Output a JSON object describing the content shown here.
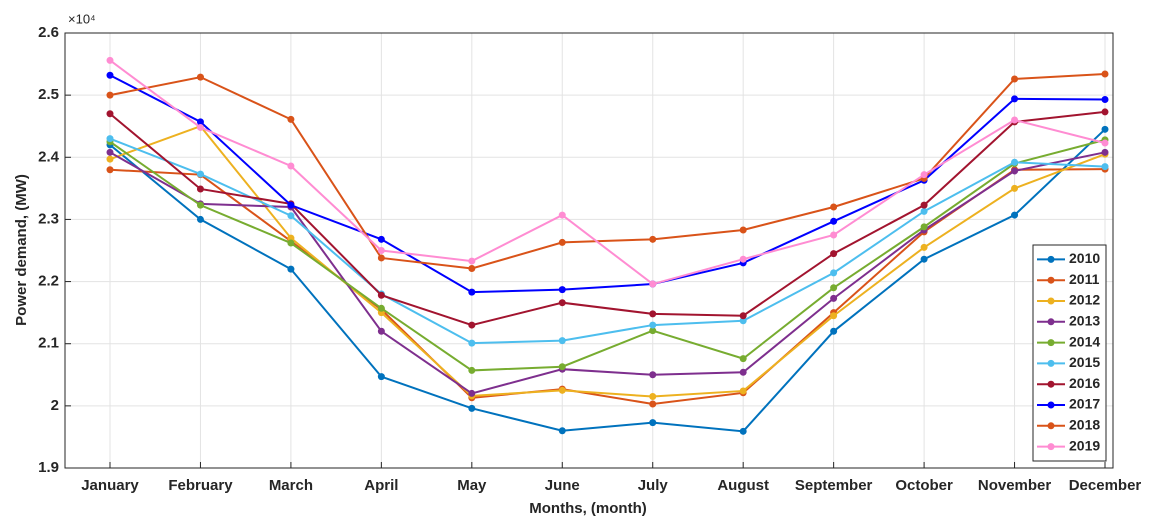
{
  "chart_data": {
    "type": "line",
    "y_multiplier": "×10⁴",
    "xlabel": "Months, (month)",
    "ylabel": "Power demand, (MW)",
    "categories": [
      "January",
      "February",
      "March",
      "April",
      "May",
      "June",
      "July",
      "August",
      "September",
      "October",
      "November",
      "December"
    ],
    "ylim": [
      1.9,
      2.6
    ],
    "yticks": [
      1.9,
      2,
      2.1,
      2.2,
      2.3,
      2.4,
      2.5,
      2.6
    ],
    "grid": true,
    "legend": "lower right",
    "series": [
      {
        "name": "2010",
        "color": "#0072BD",
        "values": [
          2.42,
          2.3,
          2.22,
          2.047,
          1.996,
          1.96,
          1.973,
          1.959,
          2.12,
          2.236,
          2.307,
          2.445
        ]
      },
      {
        "name": "2011",
        "color": "#D95319",
        "values": [
          2.38,
          2.372,
          2.265,
          2.155,
          2.013,
          2.027,
          2.003,
          2.021,
          2.15,
          2.28,
          2.38,
          2.381
        ]
      },
      {
        "name": "2012",
        "color": "#EDB120",
        "values": [
          2.397,
          2.45,
          2.27,
          2.15,
          2.016,
          2.025,
          2.015,
          2.024,
          2.145,
          2.255,
          2.35,
          2.405
        ]
      },
      {
        "name": "2013",
        "color": "#7E2F8E",
        "values": [
          2.408,
          2.325,
          2.32,
          2.12,
          2.02,
          2.059,
          2.05,
          2.054,
          2.173,
          2.283,
          2.378,
          2.408
        ]
      },
      {
        "name": "2014",
        "color": "#77AC30",
        "values": [
          2.425,
          2.323,
          2.262,
          2.157,
          2.057,
          2.063,
          2.121,
          2.076,
          2.19,
          2.288,
          2.39,
          2.428
        ]
      },
      {
        "name": "2015",
        "color": "#4DBEEE",
        "values": [
          2.43,
          2.373,
          2.306,
          2.18,
          2.101,
          2.105,
          2.13,
          2.137,
          2.214,
          2.313,
          2.392,
          2.385
        ]
      },
      {
        "name": "2016",
        "color": "#A2142F",
        "values": [
          2.47,
          2.349,
          2.325,
          2.178,
          2.13,
          2.166,
          2.148,
          2.145,
          2.245,
          2.323,
          2.457,
          2.473
        ]
      },
      {
        "name": "2017",
        "color": "#0000FF",
        "values": [
          2.532,
          2.457,
          2.323,
          2.268,
          2.183,
          2.187,
          2.196,
          2.23,
          2.297,
          2.363,
          2.494,
          2.493
        ]
      },
      {
        "name": "2018",
        "color": "#D95319",
        "values": [
          2.5,
          2.529,
          2.461,
          2.238,
          2.221,
          2.263,
          2.268,
          2.283,
          2.32,
          2.366,
          2.526,
          2.534
        ]
      },
      {
        "name": "2019",
        "color": "#FF8CD2",
        "values": [
          2.556,
          2.448,
          2.386,
          2.25,
          2.233,
          2.307,
          2.196,
          2.236,
          2.275,
          2.372,
          2.46,
          2.423
        ]
      }
    ]
  }
}
